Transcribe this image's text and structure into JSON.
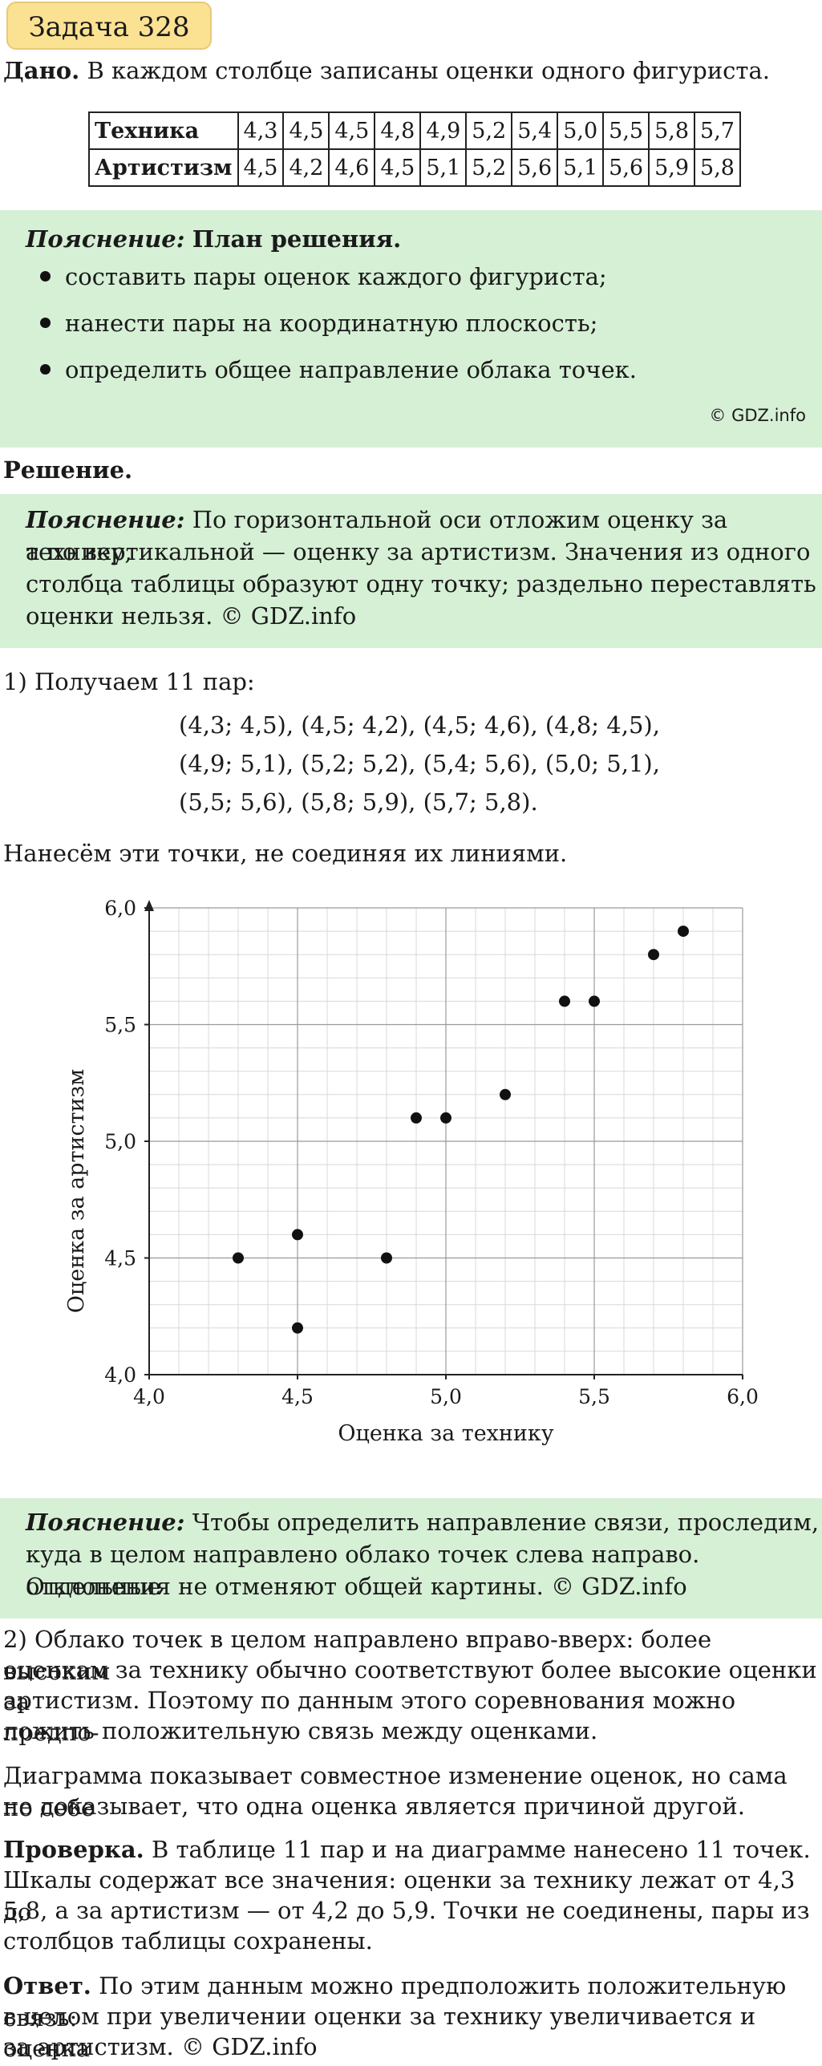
{
  "header": {
    "title": "Задача 328"
  },
  "given": {
    "label": "Дано.",
    "text": "В каждом столбце записаны оценки одного фигуриста.",
    "table": {
      "rows": [
        {
          "name": "Техника",
          "values": [
            "4,3",
            "4,5",
            "4,5",
            "4,8",
            "4,9",
            "5,2",
            "5,4",
            "5,0",
            "5,5",
            "5,8",
            "5,7"
          ]
        },
        {
          "name": "Артистизм",
          "values": [
            "4,5",
            "4,2",
            "4,6",
            "4,5",
            "5,1",
            "5,2",
            "5,6",
            "5,1",
            "5,6",
            "5,9",
            "5,8"
          ]
        }
      ]
    }
  },
  "plan": {
    "label": "Пояснение:",
    "heading": "План решения.",
    "items": [
      "составить пары оценок каждого фигуриста;",
      "нанести пары на координатную плоскость;",
      "определить общее направление облака точек."
    ],
    "copyright": "© GDZ.info"
  },
  "solution": {
    "heading": "Решение.",
    "note1": {
      "label": "Пояснение:",
      "lines": [
        "По горизонтальной оси отложим оценку за технику,",
        "а по вертикальной — оценку за артистизм. Значения из одного",
        "столбца таблицы образуют одну точку; раздельно переставлять",
        "оценки нельзя. © GDZ.info"
      ]
    },
    "step1": "1) Получаем 11 пар:",
    "pairs": [
      "(4,3; 4,5),  (4,5; 4,2),  (4,5; 4,6),  (4,8; 4,5),",
      "(4,9; 5,1),  (5,2; 5,2),  (5,4; 5,6),  (5,0; 5,1),",
      "(5,5; 5,6),  (5,8; 5,9),  (5,7; 5,8)."
    ],
    "plot_intro": "Нанесём эти точки, не соединяя их линиями.",
    "note2": {
      "label": "Пояснение:",
      "lines": [
        "Чтобы определить направление связи, проследим,",
        "куда в целом направлено облако точек слева направо. Отдельные",
        "отклонения не отменяют общей картины. © GDZ.info"
      ]
    },
    "step2": [
      "2) Облако точек в целом направлено вправо-вверх: более высоким",
      "оценкам за технику обычно соответствуют более высокие оценки за",
      "артистизм. Поэтому по данным этого соревнования можно предпо-",
      "ложить положительную связь между оценками."
    ],
    "causation": [
      "Диаграмма показывает совместное изменение оценок, но сама по себе",
      "не доказывает, что одна оценка является причиной другой."
    ],
    "check": {
      "label": "Проверка.",
      "lines": [
        "В таблице 11 пар и на диаграмме нанесено 11 точек.",
        "Шкалы содержат все значения: оценки за технику лежат от 4,3 до",
        "5,8, а за артистизм — от 4,2 до 5,9. Точки не соединены, пары из",
        "столбцов таблицы сохранены."
      ]
    },
    "answer": {
      "label": "Ответ.",
      "lines": [
        "По этим данным можно предположить положительную связь:",
        "в целом при увеличении оценки за технику увеличивается и оценка",
        "за артистизм. © GDZ.info"
      ]
    }
  },
  "chart_data": {
    "type": "scatter",
    "xlabel": "Оценка за технику",
    "ylabel": "Оценка за артистизм",
    "xlim": [
      4.0,
      6.0
    ],
    "ylim": [
      4.0,
      6.0
    ],
    "x_ticks": [
      "4,0",
      "4,5",
      "5,0",
      "5,5",
      "6,0"
    ],
    "y_ticks": [
      "4,0",
      "4,5",
      "5,0",
      "5,5",
      "6,0"
    ],
    "grid": true,
    "points": [
      {
        "x": 4.3,
        "y": 4.5
      },
      {
        "x": 4.5,
        "y": 4.2
      },
      {
        "x": 4.5,
        "y": 4.6
      },
      {
        "x": 4.8,
        "y": 4.5
      },
      {
        "x": 4.9,
        "y": 5.1
      },
      {
        "x": 5.2,
        "y": 5.2
      },
      {
        "x": 5.4,
        "y": 5.6
      },
      {
        "x": 5.0,
        "y": 5.1
      },
      {
        "x": 5.5,
        "y": 5.6
      },
      {
        "x": 5.8,
        "y": 5.9
      },
      {
        "x": 5.7,
        "y": 5.8
      }
    ],
    "point_color": "#111111"
  },
  "colors": {
    "title_bg": "#fbe192",
    "note_bg": "#d6f0d6"
  }
}
